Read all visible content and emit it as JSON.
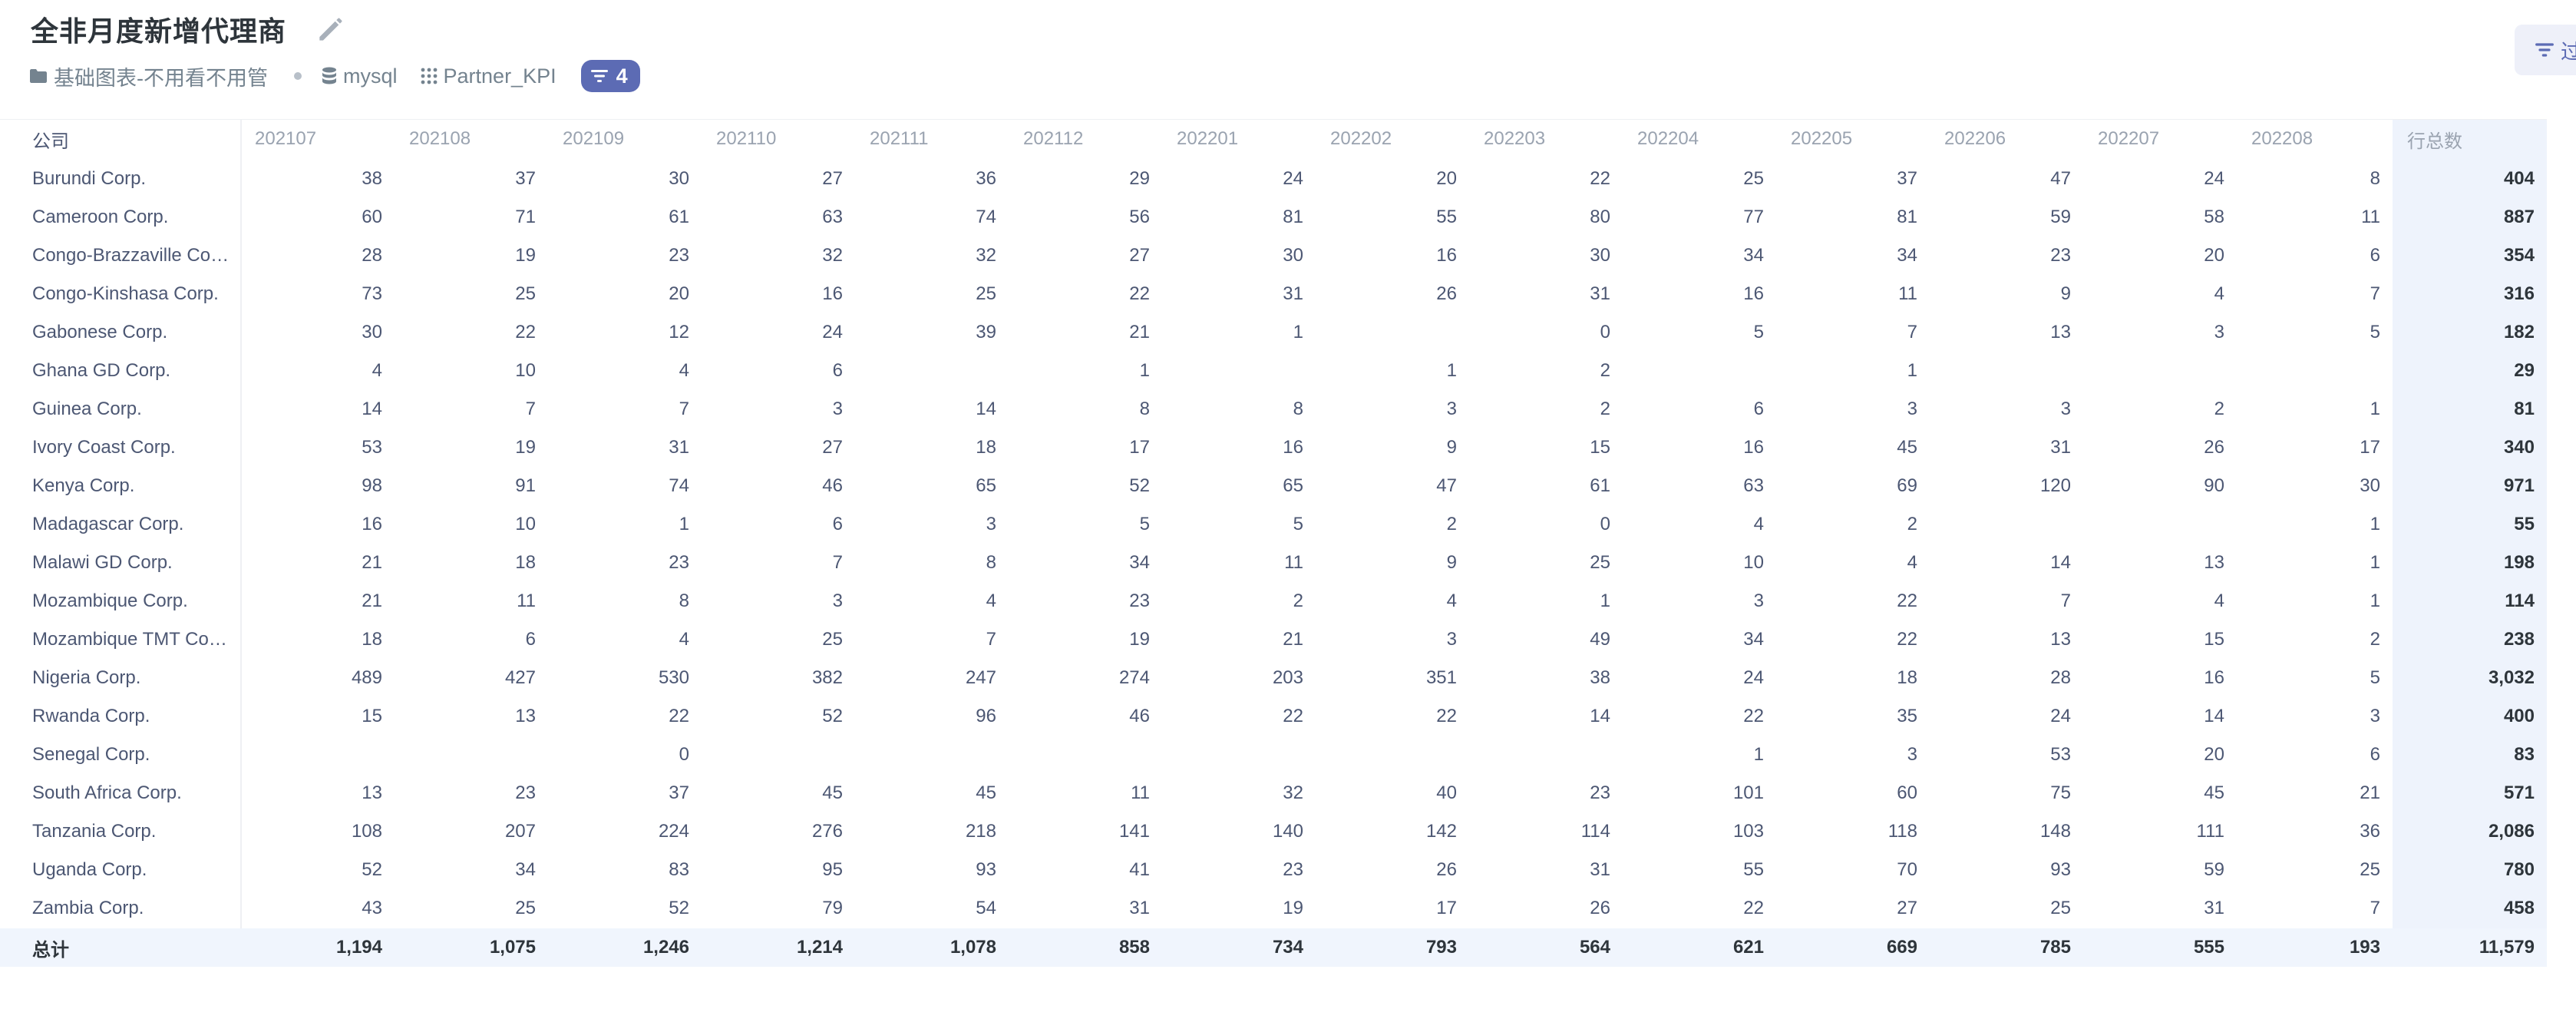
{
  "header": {
    "title": "全非月度新增代理商",
    "collection_label": "基础图表-不用看不用管",
    "database_label": "mysql",
    "table_label": "Partner_KPI",
    "filter_count": "4",
    "side_button_label": "过"
  },
  "table": {
    "columns": [
      "公司",
      "202107",
      "202108",
      "202109",
      "202110",
      "202111",
      "202112",
      "202201",
      "202202",
      "202203",
      "202204",
      "202205",
      "202206",
      "202207",
      "202208",
      "行总数"
    ],
    "rows": [
      {
        "name": "Burundi Corp.",
        "values": [
          "38",
          "37",
          "30",
          "27",
          "36",
          "29",
          "24",
          "20",
          "22",
          "25",
          "37",
          "47",
          "24",
          "8"
        ],
        "total": "404"
      },
      {
        "name": "Cameroon Corp.",
        "values": [
          "60",
          "71",
          "61",
          "63",
          "74",
          "56",
          "81",
          "55",
          "80",
          "77",
          "81",
          "59",
          "58",
          "11"
        ],
        "total": "887"
      },
      {
        "name": "Congo-Brazzaville Co…",
        "values": [
          "28",
          "19",
          "23",
          "32",
          "32",
          "27",
          "30",
          "16",
          "30",
          "34",
          "34",
          "23",
          "20",
          "6"
        ],
        "total": "354"
      },
      {
        "name": "Congo-Kinshasa Corp.",
        "values": [
          "73",
          "25",
          "20",
          "16",
          "25",
          "22",
          "31",
          "26",
          "31",
          "16",
          "11",
          "9",
          "4",
          "7"
        ],
        "total": "316"
      },
      {
        "name": "Gabonese Corp.",
        "values": [
          "30",
          "22",
          "12",
          "24",
          "39",
          "21",
          "1",
          "",
          "0",
          "5",
          "7",
          "13",
          "3",
          "5"
        ],
        "total": "182"
      },
      {
        "name": "Ghana GD Corp.",
        "values": [
          "4",
          "10",
          "4",
          "6",
          "",
          "1",
          "",
          "1",
          "2",
          "",
          "1",
          "",
          "",
          ""
        ],
        "total": "29"
      },
      {
        "name": "Guinea Corp.",
        "values": [
          "14",
          "7",
          "7",
          "3",
          "14",
          "8",
          "8",
          "3",
          "2",
          "6",
          "3",
          "3",
          "2",
          "1"
        ],
        "total": "81"
      },
      {
        "name": "Ivory Coast Corp.",
        "values": [
          "53",
          "19",
          "31",
          "27",
          "18",
          "17",
          "16",
          "9",
          "15",
          "16",
          "45",
          "31",
          "26",
          "17"
        ],
        "total": "340"
      },
      {
        "name": "Kenya Corp.",
        "values": [
          "98",
          "91",
          "74",
          "46",
          "65",
          "52",
          "65",
          "47",
          "61",
          "63",
          "69",
          "120",
          "90",
          "30"
        ],
        "total": "971"
      },
      {
        "name": "Madagascar Corp.",
        "values": [
          "16",
          "10",
          "1",
          "6",
          "3",
          "5",
          "5",
          "2",
          "0",
          "4",
          "2",
          "",
          "",
          "1"
        ],
        "total": "55"
      },
      {
        "name": "Malawi GD Corp.",
        "values": [
          "21",
          "18",
          "23",
          "7",
          "8",
          "34",
          "11",
          "9",
          "25",
          "10",
          "4",
          "14",
          "13",
          "1"
        ],
        "total": "198"
      },
      {
        "name": "Mozambique Corp.",
        "values": [
          "21",
          "11",
          "8",
          "3",
          "4",
          "23",
          "2",
          "4",
          "1",
          "3",
          "22",
          "7",
          "4",
          "1"
        ],
        "total": "114"
      },
      {
        "name": "Mozambique TMT Co…",
        "values": [
          "18",
          "6",
          "4",
          "25",
          "7",
          "19",
          "21",
          "3",
          "49",
          "34",
          "22",
          "13",
          "15",
          "2"
        ],
        "total": "238"
      },
      {
        "name": "Nigeria Corp.",
        "values": [
          "489",
          "427",
          "530",
          "382",
          "247",
          "274",
          "203",
          "351",
          "38",
          "24",
          "18",
          "28",
          "16",
          "5"
        ],
        "total": "3,032"
      },
      {
        "name": "Rwanda Corp.",
        "values": [
          "15",
          "13",
          "22",
          "52",
          "96",
          "46",
          "22",
          "22",
          "14",
          "22",
          "35",
          "24",
          "14",
          "3"
        ],
        "total": "400"
      },
      {
        "name": "Senegal Corp.",
        "values": [
          "",
          "",
          "0",
          "",
          "",
          "",
          "",
          "",
          "",
          "1",
          "3",
          "53",
          "20",
          "6"
        ],
        "total": "83"
      },
      {
        "name": "South Africa Corp.",
        "values": [
          "13",
          "23",
          "37",
          "45",
          "45",
          "11",
          "32",
          "40",
          "23",
          "101",
          "60",
          "75",
          "45",
          "21"
        ],
        "total": "571"
      },
      {
        "name": "Tanzania Corp.",
        "values": [
          "108",
          "207",
          "224",
          "276",
          "218",
          "141",
          "140",
          "142",
          "114",
          "103",
          "118",
          "148",
          "111",
          "36"
        ],
        "total": "2,086"
      },
      {
        "name": "Uganda Corp.",
        "values": [
          "52",
          "34",
          "83",
          "95",
          "93",
          "41",
          "23",
          "26",
          "31",
          "55",
          "70",
          "93",
          "59",
          "25"
        ],
        "total": "780"
      },
      {
        "name": "Zambia Corp.",
        "values": [
          "43",
          "25",
          "52",
          "79",
          "54",
          "31",
          "19",
          "17",
          "26",
          "22",
          "27",
          "25",
          "31",
          "7"
        ],
        "total": "458"
      }
    ],
    "totals": {
      "name": "总计",
      "values": [
        "1,194",
        "1,075",
        "1,246",
        "1,214",
        "1,078",
        "858",
        "734",
        "793",
        "564",
        "621",
        "669",
        "785",
        "555",
        "193"
      ],
      "total": "11,579"
    }
  },
  "colors": {
    "accent": "#5c6bb4",
    "total_column_bg": "#eef3fc",
    "text": "#4c5773",
    "muted": "#9aa3b0"
  },
  "icons": {
    "edit": "pencil-icon",
    "collection": "folder-icon",
    "database": "database-icon",
    "table": "grid-icon",
    "filter": "filter-icon"
  }
}
